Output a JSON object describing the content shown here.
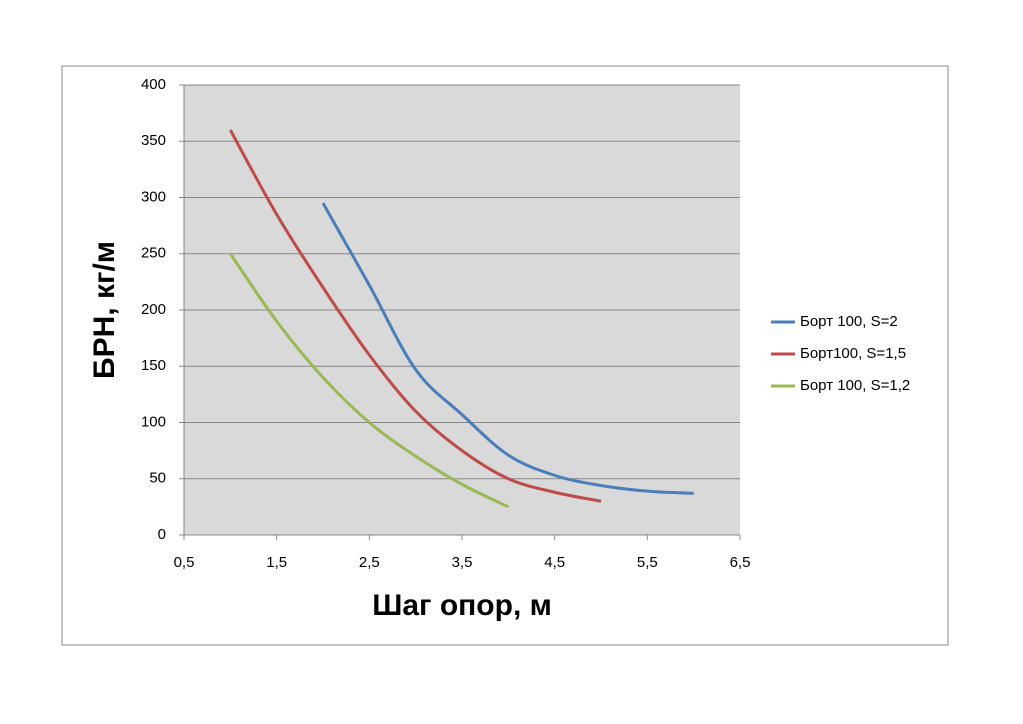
{
  "chart_data": {
    "type": "line",
    "xlabel": "Шаг опор, м",
    "ylabel": "БРН, кг/м",
    "xlim": [
      0.5,
      6.5
    ],
    "xticks": [
      {
        "value": 0.5,
        "label": "0,5"
      },
      {
        "value": 1.5,
        "label": "1,5"
      },
      {
        "value": 2.5,
        "label": "2,5"
      },
      {
        "value": 3.5,
        "label": "3,5"
      },
      {
        "value": 4.5,
        "label": "4,5"
      },
      {
        "value": 5.5,
        "label": "5,5"
      },
      {
        "value": 6.5,
        "label": "6,5"
      }
    ],
    "ylim": [
      0,
      400
    ],
    "yticks": [
      0,
      50,
      100,
      150,
      200,
      250,
      300,
      350,
      400
    ],
    "grid": true,
    "legend": "right",
    "series": [
      {
        "name": "Борт 100, S=2",
        "color": "#4a7ebb",
        "x": [
          2,
          2.5,
          3,
          3.5,
          4,
          4.5,
          5,
          5.5,
          6
        ],
        "values": [
          295,
          222,
          147,
          107,
          71,
          53,
          44,
          39,
          37
        ]
      },
      {
        "name": "Борт100, S=1,5",
        "color": "#be4b48",
        "x": [
          1,
          1.5,
          2,
          2.5,
          3,
          3.5,
          4,
          4.5,
          5
        ],
        "values": [
          360,
          285,
          220,
          160,
          110,
          75,
          50,
          38,
          30
        ]
      },
      {
        "name": "Борт 100, S=1,2",
        "color": "#98b954",
        "x": [
          1,
          1.5,
          2,
          2.5,
          3,
          3.5,
          4
        ],
        "values": [
          250,
          190,
          140,
          100,
          70,
          45,
          25
        ]
      }
    ]
  }
}
